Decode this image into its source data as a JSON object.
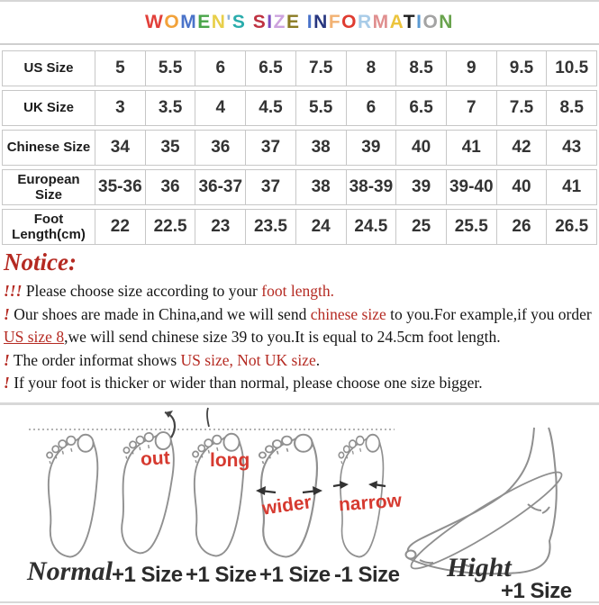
{
  "title": {
    "text": "WOMEN'S SIZE INFORMATION",
    "letters": [
      {
        "ch": "W",
        "color": "#e2403a"
      },
      {
        "ch": "O",
        "color": "#f2a23a"
      },
      {
        "ch": "M",
        "color": "#4a73c9"
      },
      {
        "ch": "E",
        "color": "#4aa54a"
      },
      {
        "ch": "N",
        "color": "#e8cf4a"
      },
      {
        "ch": "'",
        "color": "#8fb3d9"
      },
      {
        "ch": "S",
        "color": "#2aacac"
      },
      {
        "ch": " ",
        "color": "#000000"
      },
      {
        "ch": "S",
        "color": "#bf3241"
      },
      {
        "ch": "I",
        "color": "#7d4fc0"
      },
      {
        "ch": "Z",
        "color": "#cda3de"
      },
      {
        "ch": "E",
        "color": "#8a7b23"
      },
      {
        "ch": " ",
        "color": "#000000"
      },
      {
        "ch": "I",
        "color": "#4a73c9"
      },
      {
        "ch": "N",
        "color": "#27367f"
      },
      {
        "ch": "F",
        "color": "#f2b273"
      },
      {
        "ch": "O",
        "color": "#df3c31"
      },
      {
        "ch": "R",
        "color": "#a9cce8"
      },
      {
        "ch": "M",
        "color": "#e08f8f"
      },
      {
        "ch": "A",
        "color": "#ecc43c"
      },
      {
        "ch": "T",
        "color": "#1e1e1e"
      },
      {
        "ch": "I",
        "color": "#5b9ad2"
      },
      {
        "ch": "O",
        "color": "#a3a3a3"
      },
      {
        "ch": "N",
        "color": "#69a34d"
      }
    ]
  },
  "size_table": {
    "rows": [
      {
        "label": "US Size",
        "values": [
          "5",
          "5.5",
          "6",
          "6.5",
          "7.5",
          "8",
          "8.5",
          "9",
          "9.5",
          "10.5"
        ]
      },
      {
        "label": "UK Size",
        "values": [
          "3",
          "3.5",
          "4",
          "4.5",
          "5.5",
          "6",
          "6.5",
          "7",
          "7.5",
          "8.5"
        ]
      },
      {
        "label": "Chinese Size",
        "values": [
          "34",
          "35",
          "36",
          "37",
          "38",
          "39",
          "40",
          "41",
          "42",
          "43"
        ]
      },
      {
        "label": "European Size",
        "values": [
          "35-36",
          "36",
          "36-37",
          "37",
          "38",
          "38-39",
          "39",
          "39-40",
          "40",
          "41"
        ]
      },
      {
        "label": "Foot\nLength(cm)",
        "values": [
          "22",
          "22.5",
          "23",
          "23.5",
          "24",
          "24.5",
          "25",
          "25.5",
          "26",
          "26.5"
        ]
      }
    ]
  },
  "notice": {
    "heading": "Notice:",
    "lines": [
      {
        "segments": [
          {
            "t": "!!!",
            "s": "red-i"
          },
          {
            "t": " Please choose size according to your ",
            "s": "plain"
          },
          {
            "t": "foot length.",
            "s": "red"
          }
        ]
      },
      {
        "segments": [
          {
            "t": "!",
            "s": "red-i"
          },
          {
            "t": " Our shoes are made in China,and we will send ",
            "s": "plain"
          },
          {
            "t": "chinese size",
            "s": "red"
          },
          {
            "t": " to you.For example,if you order",
            "s": "plain"
          }
        ]
      },
      {
        "segments": [
          {
            "t": "US size 8",
            "s": "red-u"
          },
          {
            "t": ",we will send chinese size 39 to you.It is equal to 24.5cm foot length.",
            "s": "plain"
          }
        ]
      },
      {
        "segments": [
          {
            "t": "!",
            "s": "red-i"
          },
          {
            "t": " The order informat shows ",
            "s": "plain"
          },
          {
            "t": "US size, Not UK size",
            "s": "red"
          },
          {
            "t": ".",
            "s": "plain"
          }
        ]
      },
      {
        "segments": [
          {
            "t": "!",
            "s": "red-i"
          },
          {
            "t": " If your foot is thicker or wider than normal, please choose one size bigger.",
            "s": "plain"
          }
        ]
      }
    ]
  },
  "diagram": {
    "labels": {
      "out": "out",
      "long": "long",
      "wider": "wider",
      "narrow": "narrow"
    },
    "captions": {
      "normal": "Normal",
      "plus1_a": "+1 Size",
      "plus1_b": "+1 Size",
      "plus1_c": "+1 Size",
      "minus1": "-1 Size",
      "hight": "Hight",
      "hight_plus1": "+1 Size"
    }
  },
  "colors": {
    "notice_red": "#b52a22",
    "label_red": "#d63a30",
    "table_border": "#c7c7c7",
    "outline_gray": "#909090"
  }
}
